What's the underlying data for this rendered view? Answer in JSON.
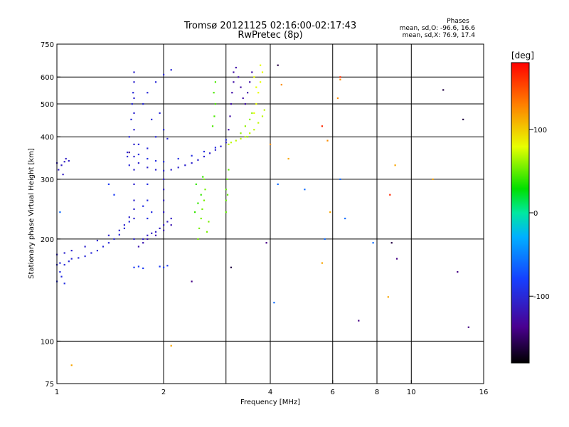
{
  "chart_data": {
    "type": "scatter",
    "title": "Tromsø 20121125 02:16:00-02:17:43",
    "subtitle": "RwPretec (8p)",
    "stats": {
      "heading": "Phases",
      "line_o": "mean, sd,O: -96.6, 16.6",
      "line_x": "mean, sd,X:  76.9, 17.4"
    },
    "xlabel": "Frequency [MHz]",
    "ylabel": "Stationary phase Virtual Height [km]",
    "xscale": "log",
    "yscale": "log",
    "xlim": [
      1,
      16
    ],
    "ylim": [
      75,
      750
    ],
    "xticks": [
      {
        "value": 1,
        "label": "1"
      },
      {
        "value": 2,
        "label": "2"
      },
      {
        "value": 4,
        "label": "4"
      },
      {
        "value": 6,
        "label": "6"
      },
      {
        "value": 8,
        "label": "8"
      },
      {
        "value": 10,
        "label": "10"
      },
      {
        "value": 16,
        "label": "16"
      }
    ],
    "xgrid": [
      2,
      3,
      4,
      6,
      8,
      10
    ],
    "yticks": [
      {
        "value": 75,
        "label": "75"
      },
      {
        "value": 100,
        "label": "100"
      },
      {
        "value": 200,
        "label": "200"
      },
      {
        "value": 300,
        "label": "300"
      },
      {
        "value": 400,
        "label": "400"
      },
      {
        "value": 500,
        "label": "500"
      },
      {
        "value": 600,
        "label": "600"
      },
      {
        "value": 750,
        "label": "750"
      }
    ],
    "ygrid": [
      100,
      200,
      300,
      400,
      500,
      600
    ],
    "grid": true,
    "colorbar": {
      "label": "[deg]",
      "range": [
        -180,
        180
      ],
      "ticks": [
        {
          "value": 100,
          "label": "100"
        },
        {
          "value": 0,
          "label": "0"
        },
        {
          "value": -100,
          "label": "-100"
        }
      ]
    },
    "traces": [
      {
        "phase": -100,
        "points": [
          [
            1.0,
            168
          ],
          [
            1.02,
            170
          ],
          [
            1.05,
            168
          ],
          [
            1.08,
            172
          ],
          [
            1.1,
            175
          ],
          [
            1.15,
            176
          ],
          [
            1.2,
            178
          ],
          [
            1.25,
            182
          ],
          [
            1.3,
            185
          ],
          [
            1.35,
            190
          ],
          [
            1.4,
            195
          ],
          [
            1.45,
            200
          ],
          [
            1.5,
            206
          ],
          [
            1.55,
            215
          ],
          [
            1.6,
            225
          ]
        ]
      },
      {
        "phase": -105,
        "points": [
          [
            1.0,
            180
          ],
          [
            1.05,
            182
          ],
          [
            1.1,
            185
          ],
          [
            1.2,
            190
          ],
          [
            1.3,
            198
          ],
          [
            1.4,
            205
          ],
          [
            1.5,
            212
          ],
          [
            1.55,
            220
          ],
          [
            1.6,
            232
          ],
          [
            1.65,
            245
          ]
        ]
      },
      {
        "phase": -95,
        "points": [
          [
            1.0,
            150
          ],
          [
            1.03,
            155
          ],
          [
            1.05,
            148
          ],
          [
            1.02,
            160
          ]
        ]
      },
      {
        "phase": -110,
        "points": [
          [
            1.0,
            335
          ],
          [
            1.03,
            330
          ],
          [
            1.05,
            338
          ],
          [
            1.08,
            340
          ],
          [
            1.01,
            320
          ],
          [
            1.04,
            310
          ],
          [
            1.06,
            345
          ]
        ]
      },
      {
        "phase": -105,
        "points": [
          [
            1.65,
            200
          ],
          [
            1.65,
            230
          ],
          [
            1.65,
            260
          ],
          [
            1.65,
            290
          ],
          [
            1.65,
            320
          ],
          [
            1.65,
            350
          ],
          [
            1.65,
            380
          ],
          [
            1.65,
            420
          ],
          [
            1.65,
            470
          ],
          [
            1.65,
            520
          ],
          [
            1.65,
            580
          ],
          [
            1.65,
            620
          ]
        ]
      },
      {
        "phase": -100,
        "points": [
          [
            1.58,
            360
          ],
          [
            1.6,
            400
          ],
          [
            1.62,
            450
          ],
          [
            1.63,
            500
          ],
          [
            1.64,
            540
          ],
          [
            1.6,
            330
          ],
          [
            1.58,
            350
          ]
        ]
      },
      {
        "phase": -105,
        "points": [
          [
            1.7,
            335
          ],
          [
            1.8,
            325
          ],
          [
            1.9,
            320
          ],
          [
            2.0,
            318
          ],
          [
            2.1,
            320
          ],
          [
            2.2,
            325
          ],
          [
            2.3,
            330
          ],
          [
            2.4,
            335
          ],
          [
            2.5,
            342
          ],
          [
            2.6,
            350
          ],
          [
            2.7,
            358
          ],
          [
            2.8,
            366
          ],
          [
            2.9,
            375
          ],
          [
            3.0,
            385
          ]
        ]
      },
      {
        "phase": -95,
        "points": [
          [
            1.7,
            355
          ],
          [
            1.8,
            345
          ],
          [
            1.9,
            340
          ],
          [
            2.0,
            338
          ],
          [
            2.2,
            345
          ],
          [
            2.4,
            352
          ],
          [
            2.6,
            362
          ],
          [
            2.8,
            372
          ],
          [
            3.0,
            392
          ]
        ]
      },
      {
        "phase": -100,
        "points": [
          [
            1.7,
            380
          ],
          [
            1.8,
            370
          ],
          [
            1.9,
            400
          ],
          [
            2.0,
            420
          ],
          [
            1.85,
            450
          ],
          [
            1.75,
            500
          ],
          [
            1.8,
            540
          ],
          [
            1.9,
            580
          ],
          [
            2.0,
            610
          ],
          [
            2.1,
            630
          ],
          [
            1.95,
            470
          ],
          [
            2.05,
            395
          ]
        ]
      },
      {
        "phase": -110,
        "points": [
          [
            1.75,
            200
          ],
          [
            1.8,
            205
          ],
          [
            1.85,
            208
          ],
          [
            1.9,
            210
          ],
          [
            1.95,
            215
          ],
          [
            2.0,
            220
          ],
          [
            2.05,
            225
          ],
          [
            2.1,
            230
          ],
          [
            2.0,
            240
          ],
          [
            2.0,
            260
          ],
          [
            2.0,
            280
          ],
          [
            2.0,
            300
          ]
        ]
      },
      {
        "phase": -120,
        "points": [
          [
            1.7,
            190
          ],
          [
            1.75,
            195
          ],
          [
            1.8,
            200
          ],
          [
            1.9,
            205
          ],
          [
            2.0,
            212
          ],
          [
            2.1,
            220
          ]
        ]
      },
      {
        "phase": -95,
        "points": [
          [
            1.8,
            230
          ],
          [
            1.8,
            260
          ],
          [
            1.8,
            290
          ],
          [
            1.85,
            240
          ],
          [
            1.75,
            250
          ]
        ]
      },
      {
        "phase": -85,
        "points": [
          [
            1.65,
            165
          ],
          [
            1.7,
            166
          ],
          [
            1.75,
            164
          ],
          [
            1.95,
            166
          ],
          [
            2.0,
            165
          ],
          [
            2.05,
            167
          ],
          [
            1.4,
            290
          ],
          [
            1.45,
            270
          ]
        ]
      },
      {
        "phase": 55,
        "points": [
          [
            2.5,
            200
          ],
          [
            2.52,
            215
          ],
          [
            2.55,
            230
          ],
          [
            2.57,
            245
          ],
          [
            2.6,
            260
          ],
          [
            2.62,
            280
          ],
          [
            2.6,
            300
          ],
          [
            2.65,
            210
          ],
          [
            2.68,
            225
          ]
        ]
      },
      {
        "phase": 40,
        "points": [
          [
            2.45,
            240
          ],
          [
            2.5,
            255
          ],
          [
            2.55,
            270
          ],
          [
            2.47,
            290
          ],
          [
            2.58,
            305
          ]
        ]
      },
      {
        "phase": 50,
        "points": [
          [
            3.0,
            260
          ],
          [
            3.0,
            280
          ],
          [
            3.02,
            300
          ],
          [
            3.05,
            320
          ],
          [
            3.03,
            270
          ],
          [
            3.0,
            240
          ]
        ]
      },
      {
        "phase": 45,
        "points": [
          [
            2.75,
            430
          ],
          [
            2.78,
            460
          ],
          [
            2.8,
            500
          ],
          [
            2.77,
            540
          ],
          [
            2.8,
            580
          ]
        ]
      },
      {
        "phase": -125,
        "points": [
          [
            3.05,
            420
          ],
          [
            3.08,
            460
          ],
          [
            3.1,
            500
          ],
          [
            3.12,
            540
          ],
          [
            3.15,
            580
          ],
          [
            3.15,
            620
          ],
          [
            3.2,
            640
          ],
          [
            3.25,
            600
          ],
          [
            3.3,
            560
          ],
          [
            3.35,
            520
          ],
          [
            3.4,
            500
          ],
          [
            3.45,
            540
          ],
          [
            3.5,
            580
          ],
          [
            3.55,
            620
          ]
        ]
      },
      {
        "phase": 70,
        "points": [
          [
            3.05,
            380
          ],
          [
            3.1,
            385
          ],
          [
            3.2,
            390
          ],
          [
            3.3,
            395
          ],
          [
            3.4,
            400
          ],
          [
            3.5,
            410
          ],
          [
            3.6,
            420
          ],
          [
            3.7,
            440
          ],
          [
            3.8,
            460
          ],
          [
            3.85,
            480
          ]
        ]
      },
      {
        "phase": 80,
        "points": [
          [
            3.6,
            470
          ],
          [
            3.65,
            500
          ],
          [
            3.7,
            540
          ],
          [
            3.75,
            580
          ],
          [
            3.8,
            620
          ],
          [
            3.75,
            650
          ],
          [
            3.6,
            600
          ],
          [
            3.65,
            560
          ]
        ]
      },
      {
        "phase": 60,
        "points": [
          [
            3.3,
            410
          ],
          [
            3.4,
            430
          ],
          [
            3.5,
            450
          ],
          [
            3.55,
            470
          ],
          [
            3.45,
            400
          ]
        ]
      },
      {
        "phase": 125,
        "points": [
          [
            6.3,
            590
          ],
          [
            6.2,
            520
          ],
          [
            5.8,
            390
          ],
          [
            4.3,
            570
          ],
          [
            4.0,
            380
          ]
        ]
      },
      {
        "phase": 165,
        "points": [
          [
            8.7,
            270
          ],
          [
            5.6,
            430
          ],
          [
            6.3,
            600
          ]
        ]
      },
      {
        "phase": -160,
        "points": [
          [
            3.1,
            165
          ],
          [
            12.3,
            550
          ],
          [
            14.0,
            450
          ],
          [
            8.8,
            195
          ],
          [
            4.2,
            650
          ]
        ]
      },
      {
        "phase": -140,
        "points": [
          [
            2.4,
            150
          ],
          [
            7.1,
            115
          ],
          [
            14.5,
            110
          ],
          [
            13.5,
            160
          ],
          [
            9.1,
            175
          ],
          [
            3.9,
            195
          ],
          [
            1.6,
            360
          ]
        ]
      },
      {
        "phase": -60,
        "points": [
          [
            4.2,
            290
          ],
          [
            4.1,
            130
          ],
          [
            6.3,
            300
          ],
          [
            6.5,
            230
          ],
          [
            7.8,
            195
          ],
          [
            5.0,
            280
          ],
          [
            5.7,
            200
          ],
          [
            1.02,
            240
          ]
        ]
      },
      {
        "phase": 115,
        "points": [
          [
            8.6,
            135
          ],
          [
            9.0,
            330
          ],
          [
            5.6,
            170
          ],
          [
            5.9,
            240
          ],
          [
            4.5,
            345
          ],
          [
            2.1,
            97
          ],
          [
            1.1,
            85
          ],
          [
            11.5,
            300
          ]
        ]
      }
    ]
  }
}
